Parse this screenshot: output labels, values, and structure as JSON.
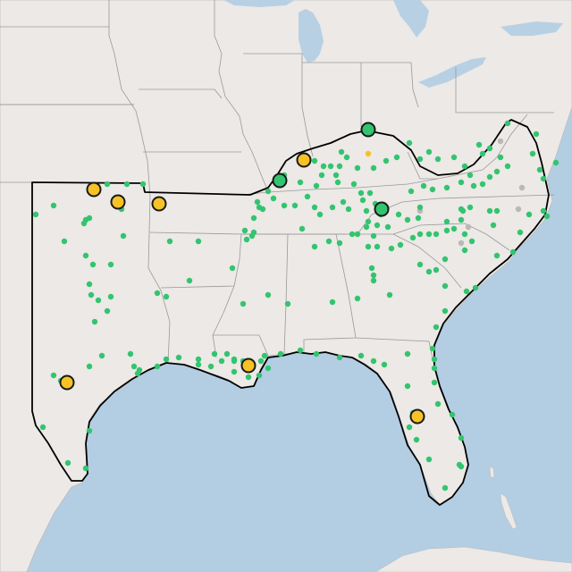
{
  "map": {
    "colors": {
      "land": "#ece9e6",
      "water": "#b3cde3",
      "lakes": "#b8d0e4",
      "state_border": "#9a9a9a",
      "region_outline": "#000000",
      "dot_green": "#33c46f",
      "dot_yellow": "#f6c225",
      "dot_gray": "#b9b9b9",
      "marker_stroke": "#1a1a1a"
    },
    "large_markers": [
      {
        "name": "marker-yellow-1",
        "color": "yellow"
      },
      {
        "name": "marker-yellow-2",
        "color": "yellow"
      },
      {
        "name": "marker-yellow-3",
        "color": "yellow"
      },
      {
        "name": "marker-yellow-4",
        "color": "yellow"
      },
      {
        "name": "marker-yellow-5",
        "color": "yellow"
      },
      {
        "name": "marker-yellow-6",
        "color": "yellow"
      },
      {
        "name": "marker-yellow-7",
        "color": "yellow"
      },
      {
        "name": "marker-green-1",
        "color": "green"
      },
      {
        "name": "marker-green-2",
        "color": "green"
      },
      {
        "name": "marker-green-3",
        "color": "green"
      }
    ]
  }
}
